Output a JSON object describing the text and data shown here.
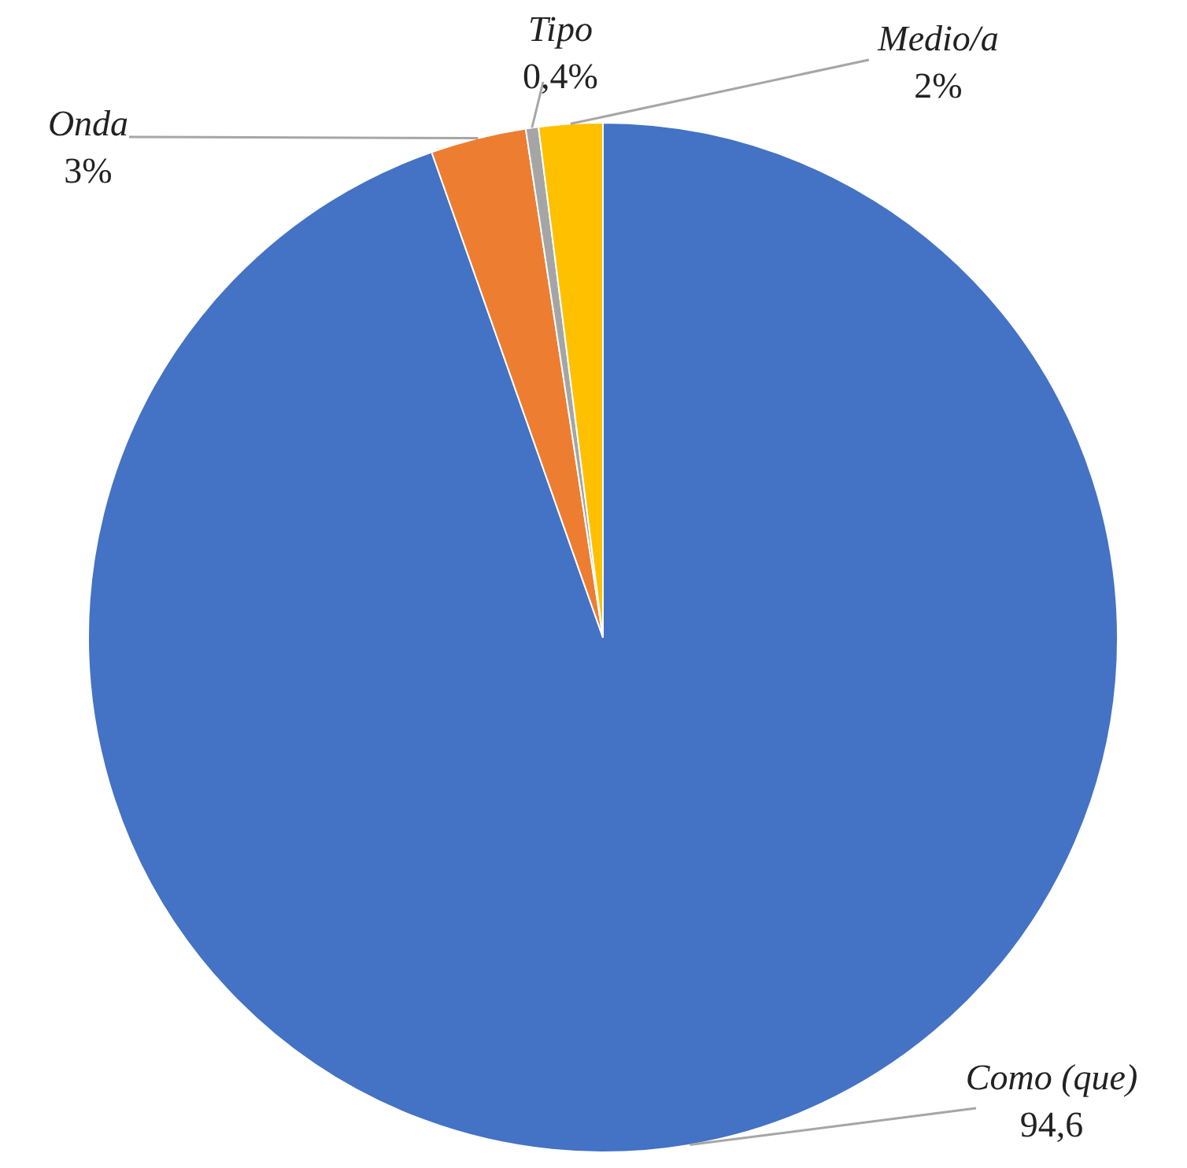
{
  "chart_data": {
    "type": "pie",
    "categories": [
      "Como (que)",
      "Onda",
      "Tipo",
      "Medio/a"
    ],
    "values": [
      94.6,
      3,
      0.4,
      2
    ],
    "colors": [
      "#4472c4",
      "#ed7d31",
      "#a5a5a5",
      "#ffc000"
    ],
    "value_labels": [
      "94,6",
      "3%",
      "0,4%",
      "2%"
    ],
    "legend": false
  }
}
